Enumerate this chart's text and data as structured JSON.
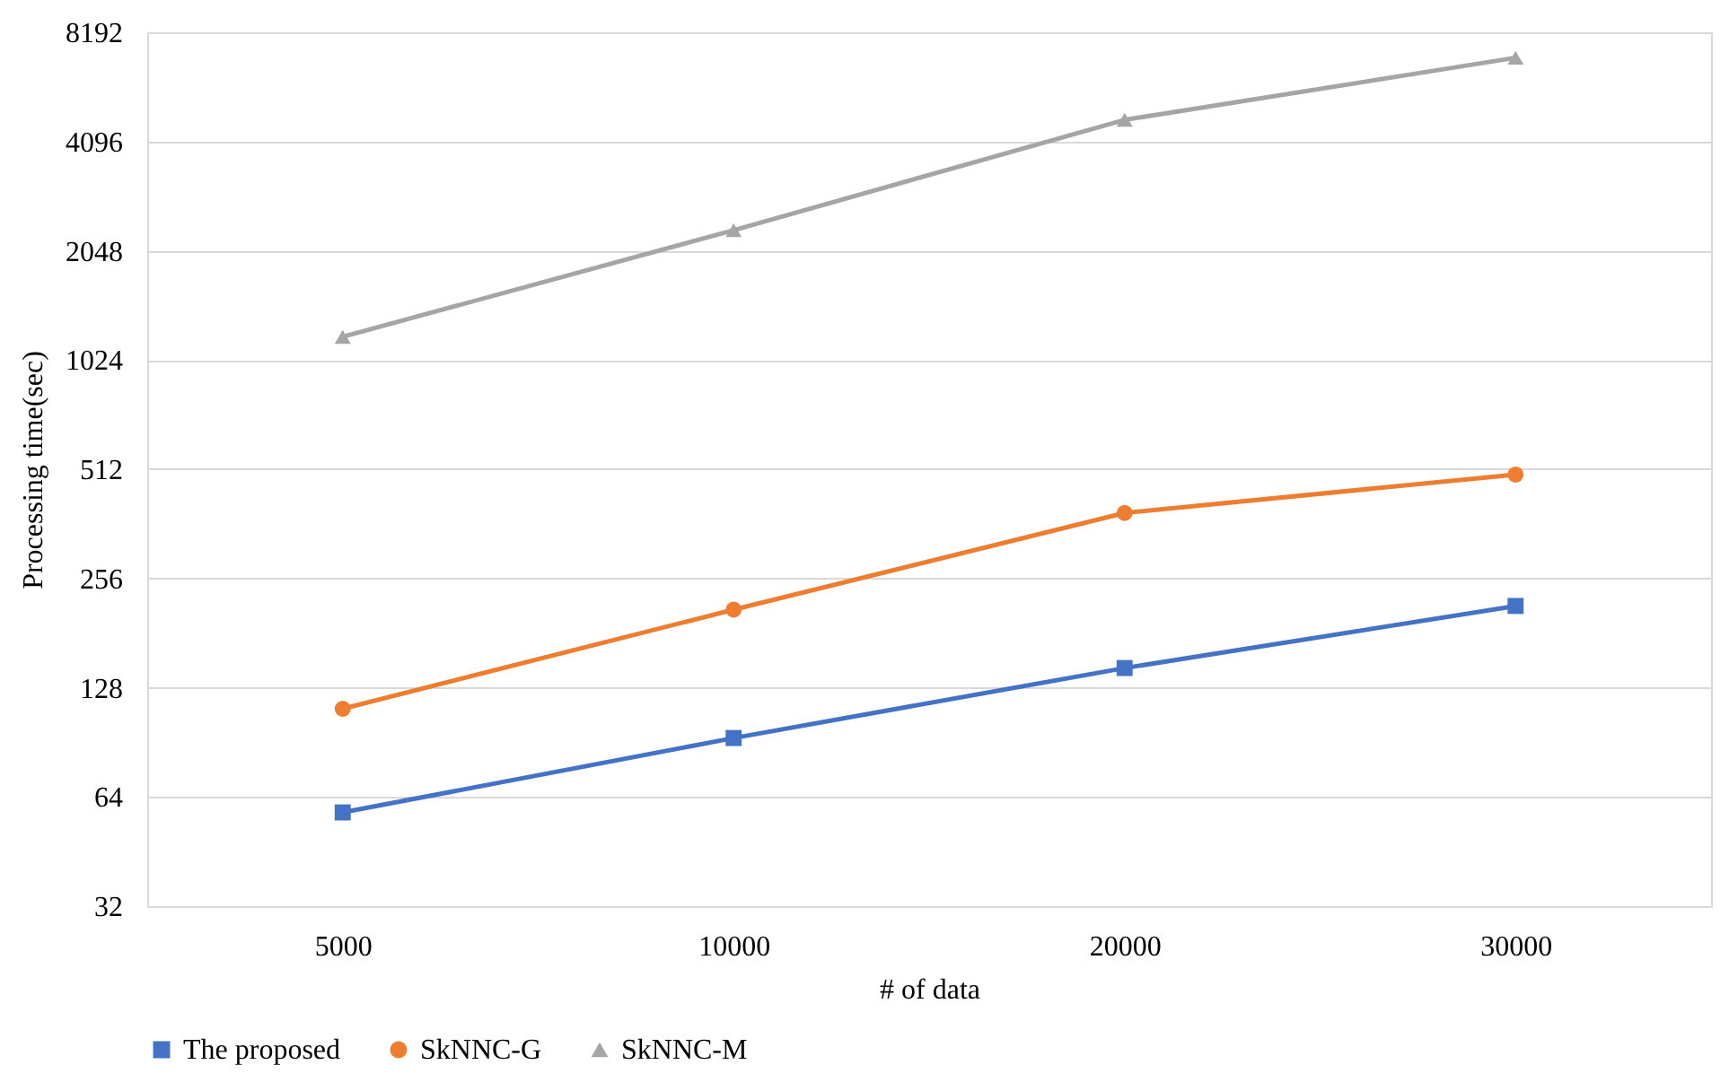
{
  "chart_data": {
    "type": "line",
    "xlabel": "# of data",
    "ylabel": "Processing time(sec)",
    "categories": [
      "5000",
      "10000",
      "20000",
      "30000"
    ],
    "log": "y",
    "ylim": [
      32,
      8192
    ],
    "yticks": [
      32,
      64,
      128,
      256,
      512,
      1024,
      2048,
      4096,
      8192
    ],
    "grid": "y",
    "legend": "bottom",
    "line_style": "solid",
    "series": [
      {
        "name": "The proposed",
        "color": "#4472c4",
        "marker": "square",
        "values": [
          58,
          93,
          145,
          215
        ]
      },
      {
        "name": "SkNNC-G",
        "color": "#ed7d31",
        "marker": "circle",
        "values": [
          112,
          210,
          388,
          495
        ]
      },
      {
        "name": "SkNNC-M",
        "color": "#a5a5a5",
        "marker": "triangle",
        "values": [
          1186,
          2333,
          4700,
          6970
        ]
      }
    ]
  }
}
